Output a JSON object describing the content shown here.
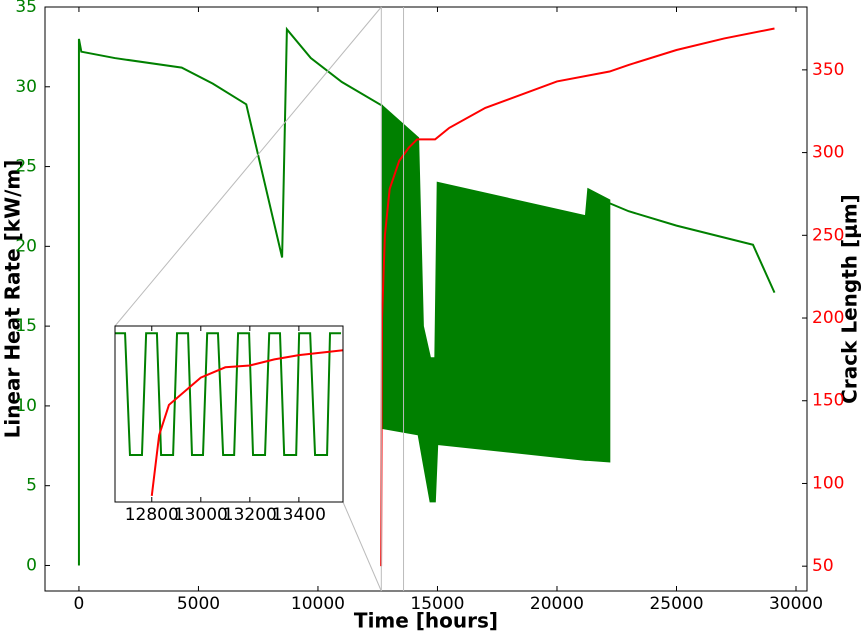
{
  "chart_data": [
    {
      "type": "line",
      "x_label": "Time [hours]",
      "y_label": "Linear Heat Rate [kW/m]",
      "y2_label": "Crack Length [μm]",
      "xlim": [
        -1420,
        30460
      ],
      "xticks": [
        0,
        5000,
        10000,
        15000,
        20000,
        25000,
        30000
      ],
      "ylim": [
        -1.6,
        35
      ],
      "yticks": [
        0,
        5,
        10,
        15,
        20,
        25,
        30,
        35
      ],
      "y2lim": [
        35,
        388
      ],
      "y2ticks": [
        50,
        100,
        150,
        200,
        250,
        300,
        350
      ],
      "series": [
        {
          "color": "#008000",
          "x": [
            0,
            0,
            100,
            1500,
            4300,
            5600,
            7000,
            8500,
            8700,
            9700,
            11000,
            12700,
            null,
            22200,
            23000,
            25000,
            28200,
            29100
          ],
          "values": [
            0,
            33,
            32.2,
            31.8,
            31.2,
            30.2,
            28.9,
            19.3,
            33.6,
            31.8,
            30.3,
            28.8,
            null,
            22.7,
            22.2,
            21.3,
            20.1,
            17.1
          ]
        },
        {
          "color": "#008000",
          "x": [
            12700,
            14200,
            14400,
            14700,
            14900,
            15000,
            21200,
            21300,
            22200
          ],
          "upper": [
            28.8,
            26.8,
            15,
            13,
            13,
            24,
            21.9,
            23.6,
            22.9
          ],
          "lower": [
            8.6,
            8.2,
            6.5,
            4,
            4,
            7.6,
            6.6,
            6.6,
            6.5
          ]
        },
        {
          "color": "#ff0000",
          "axis": "y2",
          "x": [
            12640,
            12680,
            12800,
            13000,
            13400,
            13800,
            14150,
            14900,
            15500,
            17000,
            20000,
            22200,
            23000,
            25000,
            27000,
            29100
          ],
          "values": [
            50,
            200,
            250,
            278,
            295,
            303,
            308,
            308,
            315,
            327,
            343,
            349,
            353,
            362,
            369,
            375
          ]
        }
      ]
    },
    {
      "type": "line",
      "xlim": [
        12650,
        13580
      ],
      "xticks": [
        12800,
        13000,
        13200,
        13400
      ],
      "ylim": [
        0.8,
        30
      ],
      "y2lim": [
        40,
        330
      ],
      "series": [
        {
          "color": "#008000",
          "x": [
            12650,
            12691,
            12711,
            12760,
            12777,
            12821,
            12838,
            12887,
            12903,
            12948,
            12964,
            13009,
            13026,
            13070,
            13091,
            13136,
            13152,
            13197,
            13213,
            13262,
            13279,
            13323,
            13340,
            13389,
            13401,
            13446,
            13466,
            13515,
            13527,
            13572
          ],
          "values": [
            28.8,
            28.8,
            8.6,
            8.6,
            28.8,
            28.8,
            8.6,
            8.6,
            28.8,
            28.8,
            8.6,
            8.6,
            28.8,
            28.8,
            8.6,
            8.6,
            28.8,
            28.8,
            8.6,
            8.6,
            28.8,
            28.8,
            8.6,
            8.6,
            28.8,
            28.8,
            8.6,
            8.6,
            28.8,
            28.8
          ]
        },
        {
          "color": "#ff0000",
          "axis": "y2",
          "x": [
            12800,
            12830,
            12870,
            13000,
            13100,
            13200,
            13300,
            13400,
            13580
          ],
          "values": [
            50,
            150,
            200,
            245,
            262,
            265,
            275,
            282,
            290
          ]
        }
      ]
    }
  ]
}
